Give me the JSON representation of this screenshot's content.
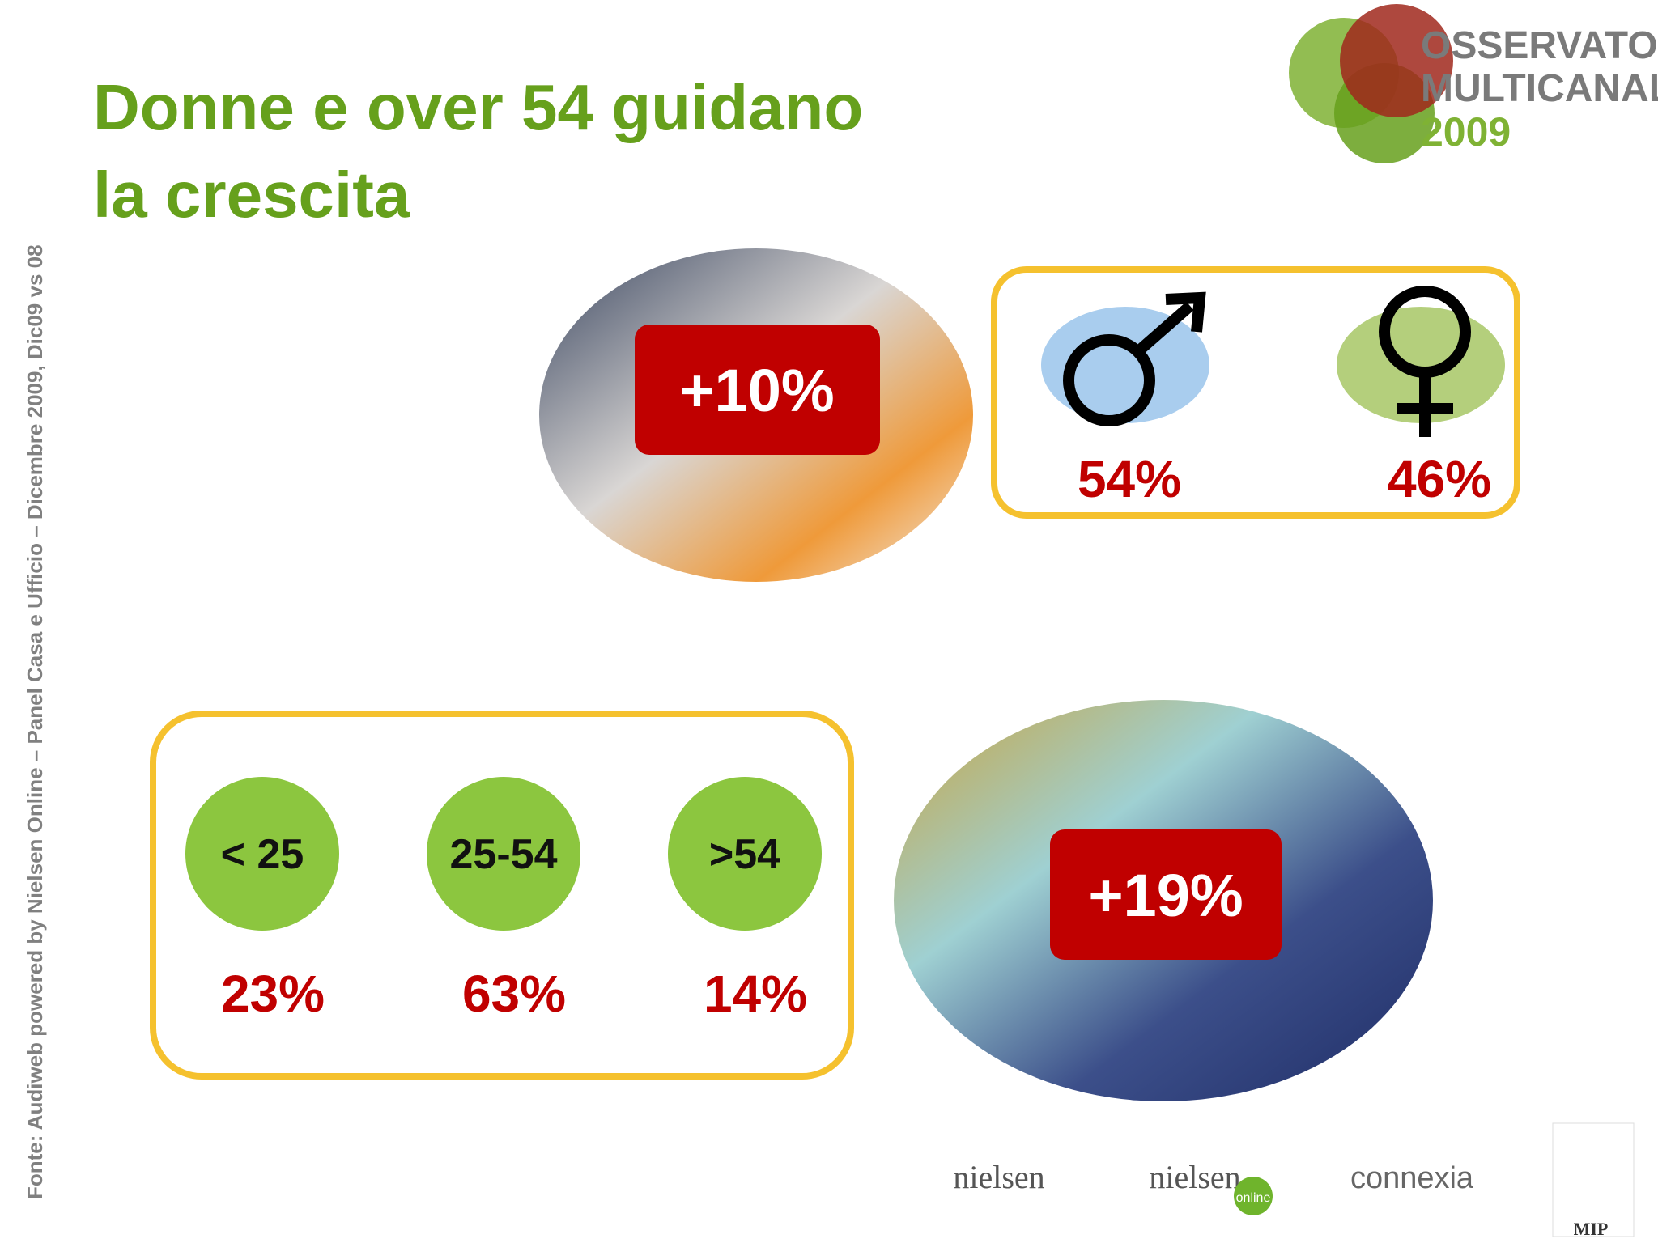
{
  "header": {
    "title_lines": [
      "Donne e over 54 guidano",
      "la crescita"
    ]
  },
  "logo": {
    "lines": [
      "OSSERVATORIO",
      "MULTICANALITÁ",
      "2009"
    ]
  },
  "source": "Fonte: Audiweb powered  by Nielsen Online – Panel Casa e Ufficio – Dicembre 2009, Dic09 vs 08",
  "badges": [
    "+10%",
    "+19%"
  ],
  "gender": {
    "male": "54%",
    "female": "46%"
  },
  "age_groups": [
    {
      "label": "< 25",
      "share": "23%"
    },
    {
      "label": "25-54",
      "share": "63%"
    },
    {
      "label": ">54",
      "share": "14%"
    }
  ],
  "footer_logos": [
    "nielsen",
    "nielsen",
    "online",
    "connexia",
    "MIP"
  ]
}
